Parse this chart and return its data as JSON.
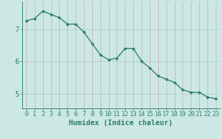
{
  "x": [
    0,
    1,
    2,
    3,
    4,
    5,
    6,
    7,
    8,
    9,
    10,
    11,
    12,
    13,
    14,
    15,
    16,
    17,
    18,
    19,
    20,
    21,
    22,
    23
  ],
  "y": [
    7.25,
    7.32,
    7.55,
    7.45,
    7.35,
    7.15,
    7.15,
    6.9,
    6.55,
    6.2,
    6.05,
    6.1,
    6.4,
    6.4,
    6.0,
    5.8,
    5.55,
    5.45,
    5.35,
    5.12,
    5.05,
    5.05,
    4.9,
    4.85
  ],
  "line_color": "#2e7d6e",
  "marker": "D",
  "marker_size": 2.2,
  "bg_color": "#cce8e4",
  "grid_color_h": "#aaccc8",
  "grid_color_v": "#c8a8a8",
  "xlabel": "Humidex (Indice chaleur)",
  "yticks": [
    5,
    6,
    7
  ],
  "xticks": [
    0,
    1,
    2,
    3,
    4,
    5,
    6,
    7,
    8,
    9,
    10,
    11,
    12,
    13,
    14,
    15,
    16,
    17,
    18,
    19,
    20,
    21,
    22,
    23
  ],
  "xlim": [
    -0.5,
    23.5
  ],
  "ylim": [
    4.55,
    7.85
  ],
  "xlabel_fontsize": 7.5,
  "tick_fontsize": 6.5,
  "ytick_fontsize": 7.5,
  "line_width": 1.0
}
